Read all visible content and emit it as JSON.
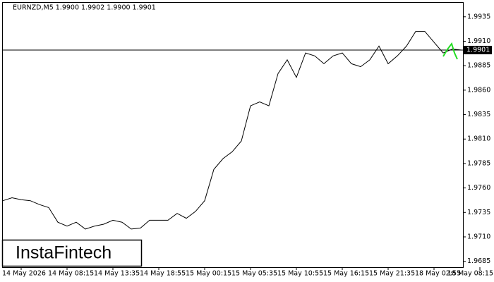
{
  "chart_data": {
    "type": "line",
    "header": "EURNZD,M5  1.9900 1.9902 1.9900 1.9901",
    "watermark": "InstaFintech",
    "categories": [
      null,
      null,
      "14 May 2026",
      null,
      null,
      null,
      null,
      "14 May 08:15",
      null,
      null,
      null,
      null,
      "14 May 13:35",
      null,
      null,
      null,
      null,
      "14 May 18:55",
      null,
      null,
      null,
      null,
      "15 May 00:15",
      null,
      null,
      null,
      null,
      "15 May 05:35",
      null,
      null,
      null,
      null,
      "15 May 10:55",
      null,
      null,
      null,
      null,
      "15 May 16:15",
      null,
      null,
      null,
      null,
      "15 May 21:35",
      null,
      null,
      null,
      null,
      "18 May 02:55",
      null,
      null,
      null,
      null,
      "18 May 08:15"
    ],
    "values": [
      1.9747,
      1.975,
      1.9748,
      1.9747,
      1.9743,
      1.974,
      1.9725,
      1.9721,
      1.9725,
      1.9718,
      1.9721,
      1.9723,
      1.9727,
      1.9725,
      1.9718,
      1.9719,
      1.9727,
      1.9727,
      1.9727,
      1.9734,
      1.9729,
      1.9736,
      1.9747,
      1.9779,
      1.979,
      1.9797,
      1.9808,
      1.9844,
      1.9848,
      1.9844,
      1.9877,
      1.9891,
      1.9873,
      1.9898,
      1.9895,
      1.9887,
      1.9895,
      1.9898,
      1.9887,
      1.9884,
      1.9891,
      1.9905,
      1.9887,
      1.9895,
      1.9905,
      1.992,
      1.992,
      1.9909,
      1.9898,
      1.9902,
      1.9901,
      null,
      null
    ],
    "color": "#000000",
    "current_price": 1.9901,
    "ylim": [
      1.9679,
      1.995
    ],
    "yticks": [
      1.9935,
      {
        "value": 1.991,
        "label": "1.9910"
      },
      1.9885,
      {
        "value": 1.986,
        "label": "1.9860"
      },
      1.9835,
      {
        "value": 1.981,
        "label": "1.9810"
      },
      1.9785,
      {
        "value": 1.976,
        "label": "1.9760"
      },
      1.9735,
      {
        "value": 1.971,
        "label": "1.9710"
      },
      1.9685
    ],
    "grid": false
  }
}
